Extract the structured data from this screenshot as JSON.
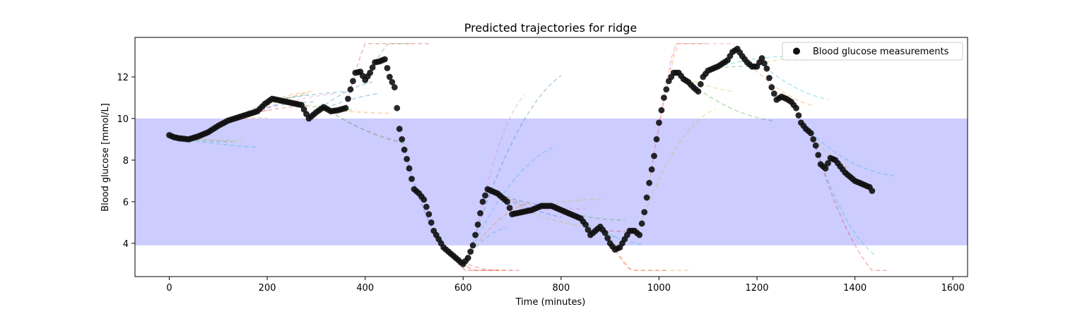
{
  "chart_data": {
    "type": "scatter",
    "title": "Predicted trajectories for ridge",
    "xlabel": "Time (minutes)",
    "ylabel": "Blood glucose [mmol/L]",
    "xlim": [
      -70,
      1630
    ],
    "ylim": [
      2.4,
      13.9
    ],
    "xticks": [
      0,
      200,
      400,
      600,
      800,
      1000,
      1200,
      1400,
      1600
    ],
    "yticks": [
      4,
      6,
      8,
      10,
      12
    ],
    "legend": {
      "position": "top-right",
      "entries": [
        "Blood glucose measurements"
      ]
    },
    "target_range": {
      "ymin": 3.9,
      "ymax": 10.0,
      "color": "#ccccff"
    },
    "grid": false,
    "series": [
      {
        "name": "Blood glucose measurements",
        "kind": "scatter",
        "color": "#111111",
        "anchor_points": [
          [
            0,
            9.2
          ],
          [
            10,
            9.1
          ],
          [
            20,
            9.05
          ],
          [
            40,
            9.0
          ],
          [
            60,
            9.15
          ],
          [
            80,
            9.35
          ],
          [
            100,
            9.65
          ],
          [
            120,
            9.9
          ],
          [
            140,
            10.05
          ],
          [
            160,
            10.2
          ],
          [
            180,
            10.35
          ],
          [
            195,
            10.7
          ],
          [
            210,
            10.95
          ],
          [
            230,
            10.85
          ],
          [
            250,
            10.75
          ],
          [
            270,
            10.65
          ],
          [
            285,
            10.0
          ],
          [
            300,
            10.3
          ],
          [
            315,
            10.55
          ],
          [
            330,
            10.35
          ],
          [
            345,
            10.4
          ],
          [
            360,
            10.5
          ],
          [
            370,
            11.4
          ],
          [
            380,
            12.2
          ],
          [
            390,
            12.25
          ],
          [
            400,
            11.85
          ],
          [
            410,
            12.2
          ],
          [
            420,
            12.7
          ],
          [
            430,
            12.75
          ],
          [
            440,
            12.85
          ],
          [
            450,
            12.0
          ],
          [
            460,
            11.5
          ],
          [
            470,
            9.5
          ],
          [
            480,
            8.5
          ],
          [
            490,
            7.6
          ],
          [
            500,
            6.6
          ],
          [
            510,
            6.4
          ],
          [
            520,
            6.1
          ],
          [
            530,
            5.4
          ],
          [
            540,
            4.6
          ],
          [
            550,
            4.2
          ],
          [
            560,
            3.8
          ],
          [
            575,
            3.5
          ],
          [
            590,
            3.2
          ],
          [
            600,
            3.0
          ],
          [
            610,
            3.3
          ],
          [
            620,
            3.9
          ],
          [
            630,
            4.9
          ],
          [
            640,
            6.0
          ],
          [
            650,
            6.6
          ],
          [
            660,
            6.5
          ],
          [
            670,
            6.4
          ],
          [
            680,
            6.2
          ],
          [
            690,
            6.0
          ],
          [
            700,
            5.4
          ],
          [
            720,
            5.5
          ],
          [
            740,
            5.6
          ],
          [
            760,
            5.8
          ],
          [
            780,
            5.8
          ],
          [
            800,
            5.6
          ],
          [
            820,
            5.4
          ],
          [
            840,
            5.2
          ],
          [
            850,
            4.9
          ],
          [
            860,
            4.4
          ],
          [
            870,
            4.6
          ],
          [
            880,
            4.8
          ],
          [
            890,
            4.5
          ],
          [
            900,
            4.0
          ],
          [
            910,
            3.7
          ],
          [
            920,
            3.8
          ],
          [
            930,
            4.2
          ],
          [
            940,
            4.6
          ],
          [
            950,
            4.6
          ],
          [
            960,
            4.4
          ],
          [
            970,
            5.5
          ],
          [
            980,
            6.9
          ],
          [
            990,
            8.2
          ],
          [
            1000,
            9.8
          ],
          [
            1010,
            11.0
          ],
          [
            1020,
            11.8
          ],
          [
            1030,
            12.2
          ],
          [
            1040,
            12.2
          ],
          [
            1050,
            11.9
          ],
          [
            1060,
            11.75
          ],
          [
            1070,
            11.5
          ],
          [
            1080,
            11.3
          ],
          [
            1090,
            12.0
          ],
          [
            1100,
            12.3
          ],
          [
            1120,
            12.5
          ],
          [
            1140,
            12.8
          ],
          [
            1150,
            13.2
          ],
          [
            1160,
            13.35
          ],
          [
            1170,
            13.0
          ],
          [
            1180,
            12.7
          ],
          [
            1190,
            12.5
          ],
          [
            1200,
            12.5
          ],
          [
            1210,
            12.9
          ],
          [
            1220,
            12.4
          ],
          [
            1230,
            11.5
          ],
          [
            1240,
            10.9
          ],
          [
            1250,
            11.05
          ],
          [
            1260,
            10.95
          ],
          [
            1270,
            10.8
          ],
          [
            1280,
            10.5
          ],
          [
            1290,
            9.8
          ],
          [
            1300,
            9.5
          ],
          [
            1310,
            9.3
          ],
          [
            1320,
            8.7
          ],
          [
            1330,
            7.8
          ],
          [
            1340,
            7.6
          ],
          [
            1350,
            8.1
          ],
          [
            1360,
            8.0
          ],
          [
            1370,
            7.7
          ],
          [
            1380,
            7.4
          ],
          [
            1390,
            7.2
          ],
          [
            1400,
            7.0
          ],
          [
            1410,
            6.9
          ],
          [
            1420,
            6.8
          ],
          [
            1430,
            6.7
          ],
          [
            1437,
            6.45
          ]
        ]
      },
      {
        "name": "",
        "kind": "dashed-lines",
        "note_colors": [
          "#1f77b4",
          "#ff7f0e",
          "#2ca02c",
          "#d62728",
          "#17becf",
          "#e377c2",
          "#bcbd22"
        ],
        "count": 60
      }
    ]
  }
}
